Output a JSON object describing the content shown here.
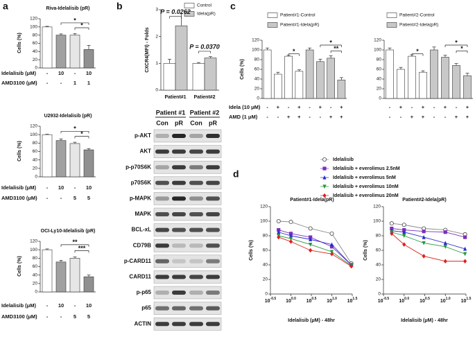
{
  "panel_labels": [
    "a",
    "b",
    "c",
    "d"
  ],
  "chart_data": [
    {
      "type": "bar",
      "title": "Riva-Idelalisib (pR)",
      "ylabel": "Cells (%)",
      "ylim": [
        0,
        120
      ],
      "yticks": [
        0,
        20,
        40,
        60,
        80,
        100,
        120
      ],
      "values": [
        100,
        80,
        80,
        45
      ],
      "errors": [
        1.5,
        3,
        4,
        10
      ],
      "colors": [
        "#ffffff",
        "#a0a0a0",
        "#e6e6e6",
        "#909090"
      ],
      "rows": [
        {
          "label": "Idelalisib (μM)",
          "values": [
            "-",
            "10",
            "-",
            "10"
          ]
        },
        {
          "label": "AMD3100 (μM)",
          "values": [
            "-",
            "-",
            "1",
            "1"
          ]
        }
      ],
      "annotations": [
        "*",
        "*"
      ]
    },
    {
      "type": "bar",
      "title": "U2932-Idelalisib (pR)",
      "ylabel": "Cells (%)",
      "ylim": [
        0,
        120
      ],
      "yticks": [
        0,
        20,
        40,
        60,
        80,
        100,
        120
      ],
      "values": [
        100,
        86,
        79,
        64
      ],
      "errors": [
        1,
        4,
        3,
        3
      ],
      "colors": [
        "#ffffff",
        "#a0a0a0",
        "#e6e6e6",
        "#909090"
      ],
      "rows": [
        {
          "label": "Idelalisib (μM)",
          "values": [
            "-",
            "10",
            "-",
            "10"
          ]
        },
        {
          "label": "AMD3100 (μM)",
          "values": [
            "-",
            "-",
            "5",
            "5"
          ]
        }
      ],
      "annotations": [
        "*",
        "*"
      ]
    },
    {
      "type": "bar",
      "title": "OCI-Ly10-Idelalisib (pR)",
      "ylabel": "Cells (%)",
      "ylim": [
        0,
        120
      ],
      "yticks": [
        0,
        20,
        40,
        60,
        80,
        100,
        120
      ],
      "values": [
        100,
        71,
        80,
        36
      ],
      "errors": [
        2,
        4,
        3,
        4
      ],
      "colors": [
        "#ffffff",
        "#a0a0a0",
        "#e6e6e6",
        "#909090"
      ],
      "rows": [
        {
          "label": "Idelalisib (μM)",
          "values": [
            "-",
            "10",
            "-",
            "10"
          ]
        },
        {
          "label": "AMD3100 (μM)",
          "values": [
            "-",
            "-",
            "5",
            "5"
          ]
        }
      ],
      "annotations": [
        "**",
        "***"
      ]
    },
    {
      "type": "bar",
      "ylabel": "CXCR4(MFI) - Folds",
      "ylim": [
        0,
        3
      ],
      "yticks": [
        0,
        1,
        2,
        3
      ],
      "categories": [
        "Patient#1",
        "Patient#2"
      ],
      "series": [
        {
          "name": "Control",
          "color": "#ffffff",
          "values": [
            1,
            1
          ],
          "errors": [
            0.15,
            0.03
          ]
        },
        {
          "name": "Idela(pR)",
          "color": "#c8c8c8",
          "values": [
            2.4,
            1.2
          ],
          "errors": [
            0.45,
            0.05
          ]
        }
      ],
      "annotations": [
        "P = 0.0262",
        "P = 0.0370"
      ]
    },
    {
      "type": "bar",
      "ylabel": "Cells (%)",
      "ylim": [
        0,
        120
      ],
      "yticks": [
        0,
        20,
        40,
        60,
        80,
        100,
        120
      ],
      "series": [
        {
          "name": "Patient#1-Control",
          "color": "#ffffff",
          "values": [
            100,
            50,
            87,
            56
          ],
          "errors": [
            4,
            4,
            2,
            3
          ]
        },
        {
          "name": "Patient#1-Idela(pR)",
          "color": "#c8c8c8",
          "values": [
            100,
            76,
            83,
            38
          ],
          "errors": [
            4,
            5,
            5,
            5
          ]
        }
      ],
      "rows": [
        {
          "label": "Idela (10 μM)",
          "values": [
            "-",
            "+",
            "-",
            "+",
            "-",
            "+",
            "-",
            "+"
          ]
        },
        {
          "label": "AMD (1 μM)",
          "values": [
            "-",
            "-",
            "+",
            "+",
            "-",
            "-",
            "+",
            "+"
          ]
        }
      ],
      "annotations": [
        "*",
        "*",
        "**"
      ]
    },
    {
      "type": "bar",
      "ylim": [
        0,
        120
      ],
      "yticks": [
        0,
        20,
        40,
        60,
        80,
        100,
        120
      ],
      "series": [
        {
          "name": "Patient#2-Control",
          "color": "#ffffff",
          "values": [
            100,
            60,
            87,
            54
          ],
          "errors": [
            4,
            4,
            3,
            3
          ]
        },
        {
          "name": "Patient#2-Idela(pR)",
          "color": "#c8c8c8",
          "values": [
            100,
            85,
            68,
            47
          ],
          "errors": [
            6,
            4,
            4,
            5
          ]
        }
      ],
      "rows": [
        {
          "values": [
            "-",
            "+",
            "-",
            "+",
            "-",
            "+",
            "-",
            "+"
          ]
        },
        {
          "values": [
            "-",
            "-",
            "+",
            "+",
            "-",
            "-",
            "+",
            "+"
          ]
        }
      ],
      "annotations": [
        "*",
        "*",
        "*"
      ]
    },
    {
      "type": "line",
      "title": "Patient#1-Idela(pR)",
      "xlabel": "Idelalisib (μM) - 48hr",
      "ylabel": "Cells (%)",
      "xlog": true,
      "x": [
        0.5,
        1,
        3,
        10,
        30
      ],
      "xlim": [
        0.3162,
        31.62
      ],
      "xticks": [
        {
          "value": 0.3162,
          "label": "10^-0.5"
        },
        {
          "value": 1,
          "label": "10^0.0"
        },
        {
          "value": 3.162,
          "label": "10^0.5"
        },
        {
          "value": 10,
          "label": "10^1.0"
        },
        {
          "value": 31.62,
          "label": "10^1.5"
        }
      ],
      "ylim": [
        0,
        120
      ],
      "yticks": [
        0,
        20,
        40,
        60,
        80,
        100,
        120
      ],
      "series": [
        {
          "name": "Idelalisib",
          "color": "#888888",
          "marker": "circle-open",
          "values": [
            100,
            99,
            90,
            83,
            42
          ]
        },
        {
          "name": "Idelalisib + everolimus 2.5nM",
          "color": "#7b2fbe",
          "marker": "square",
          "values": [
            88,
            83,
            78,
            65,
            40
          ]
        },
        {
          "name": "Idelalisib + everolimus 5nM",
          "color": "#2a2ad0",
          "marker": "triangle",
          "values": [
            85,
            80,
            75,
            68,
            40
          ]
        },
        {
          "name": "Idelalisib + everolimus 10nM",
          "color": "#1f9a3a",
          "marker": "triangle-down",
          "values": [
            80,
            76,
            68,
            58,
            39
          ]
        },
        {
          "name": "Idelalisib + everolimus 20nM",
          "color": "#e02020",
          "marker": "diamond",
          "values": [
            78,
            72,
            60,
            55,
            38
          ]
        }
      ]
    },
    {
      "type": "line",
      "title": "Patient#2-Idela(pR)",
      "xlabel": "Idelalisib (μM) - 48hr",
      "ylabel": "Cells (%)",
      "xlog": true,
      "x": [
        0.5,
        1,
        3,
        10,
        30
      ],
      "xlim": [
        0.3162,
        31.62
      ],
      "xticks": [
        {
          "value": 0.3162,
          "label": "10^-0.5"
        },
        {
          "value": 1,
          "label": "10^0.0"
        },
        {
          "value": 3.162,
          "label": "10^0.5"
        },
        {
          "value": 10,
          "label": "10^1.0"
        },
        {
          "value": 31.62,
          "label": "10^1.5"
        }
      ],
      "ylim": [
        0,
        120
      ],
      "yticks": [
        0,
        20,
        40,
        60,
        80,
        100,
        120
      ],
      "series": [
        {
          "color": "#888888",
          "marker": "circle-open",
          "values": [
            97,
            95,
            90,
            88,
            82
          ]
        },
        {
          "color": "#7b2fbe",
          "marker": "square",
          "values": [
            90,
            88,
            86,
            85,
            78
          ]
        },
        {
          "color": "#2a2ad0",
          "marker": "triangle",
          "values": [
            87,
            85,
            78,
            70,
            62
          ]
        },
        {
          "color": "#1f9a3a",
          "marker": "triangle-down",
          "values": [
            85,
            80,
            70,
            65,
            55
          ]
        },
        {
          "color": "#e02020",
          "marker": "diamond",
          "values": [
            83,
            68,
            52,
            45,
            45
          ]
        }
      ]
    }
  ],
  "blot": {
    "groups": [
      "Patient #1",
      "Patient #2"
    ],
    "lanes": [
      "Con",
      "pR",
      "Con",
      "pR"
    ],
    "rows": [
      "p-AKT",
      "AKT",
      "p-p70S6K",
      "p70S6K",
      "p-MAPK",
      "MAPK",
      "BCL-xL",
      "CD79B",
      "p-CARD11",
      "CARD11",
      "p-p65",
      "p65",
      "ACTIN"
    ]
  }
}
